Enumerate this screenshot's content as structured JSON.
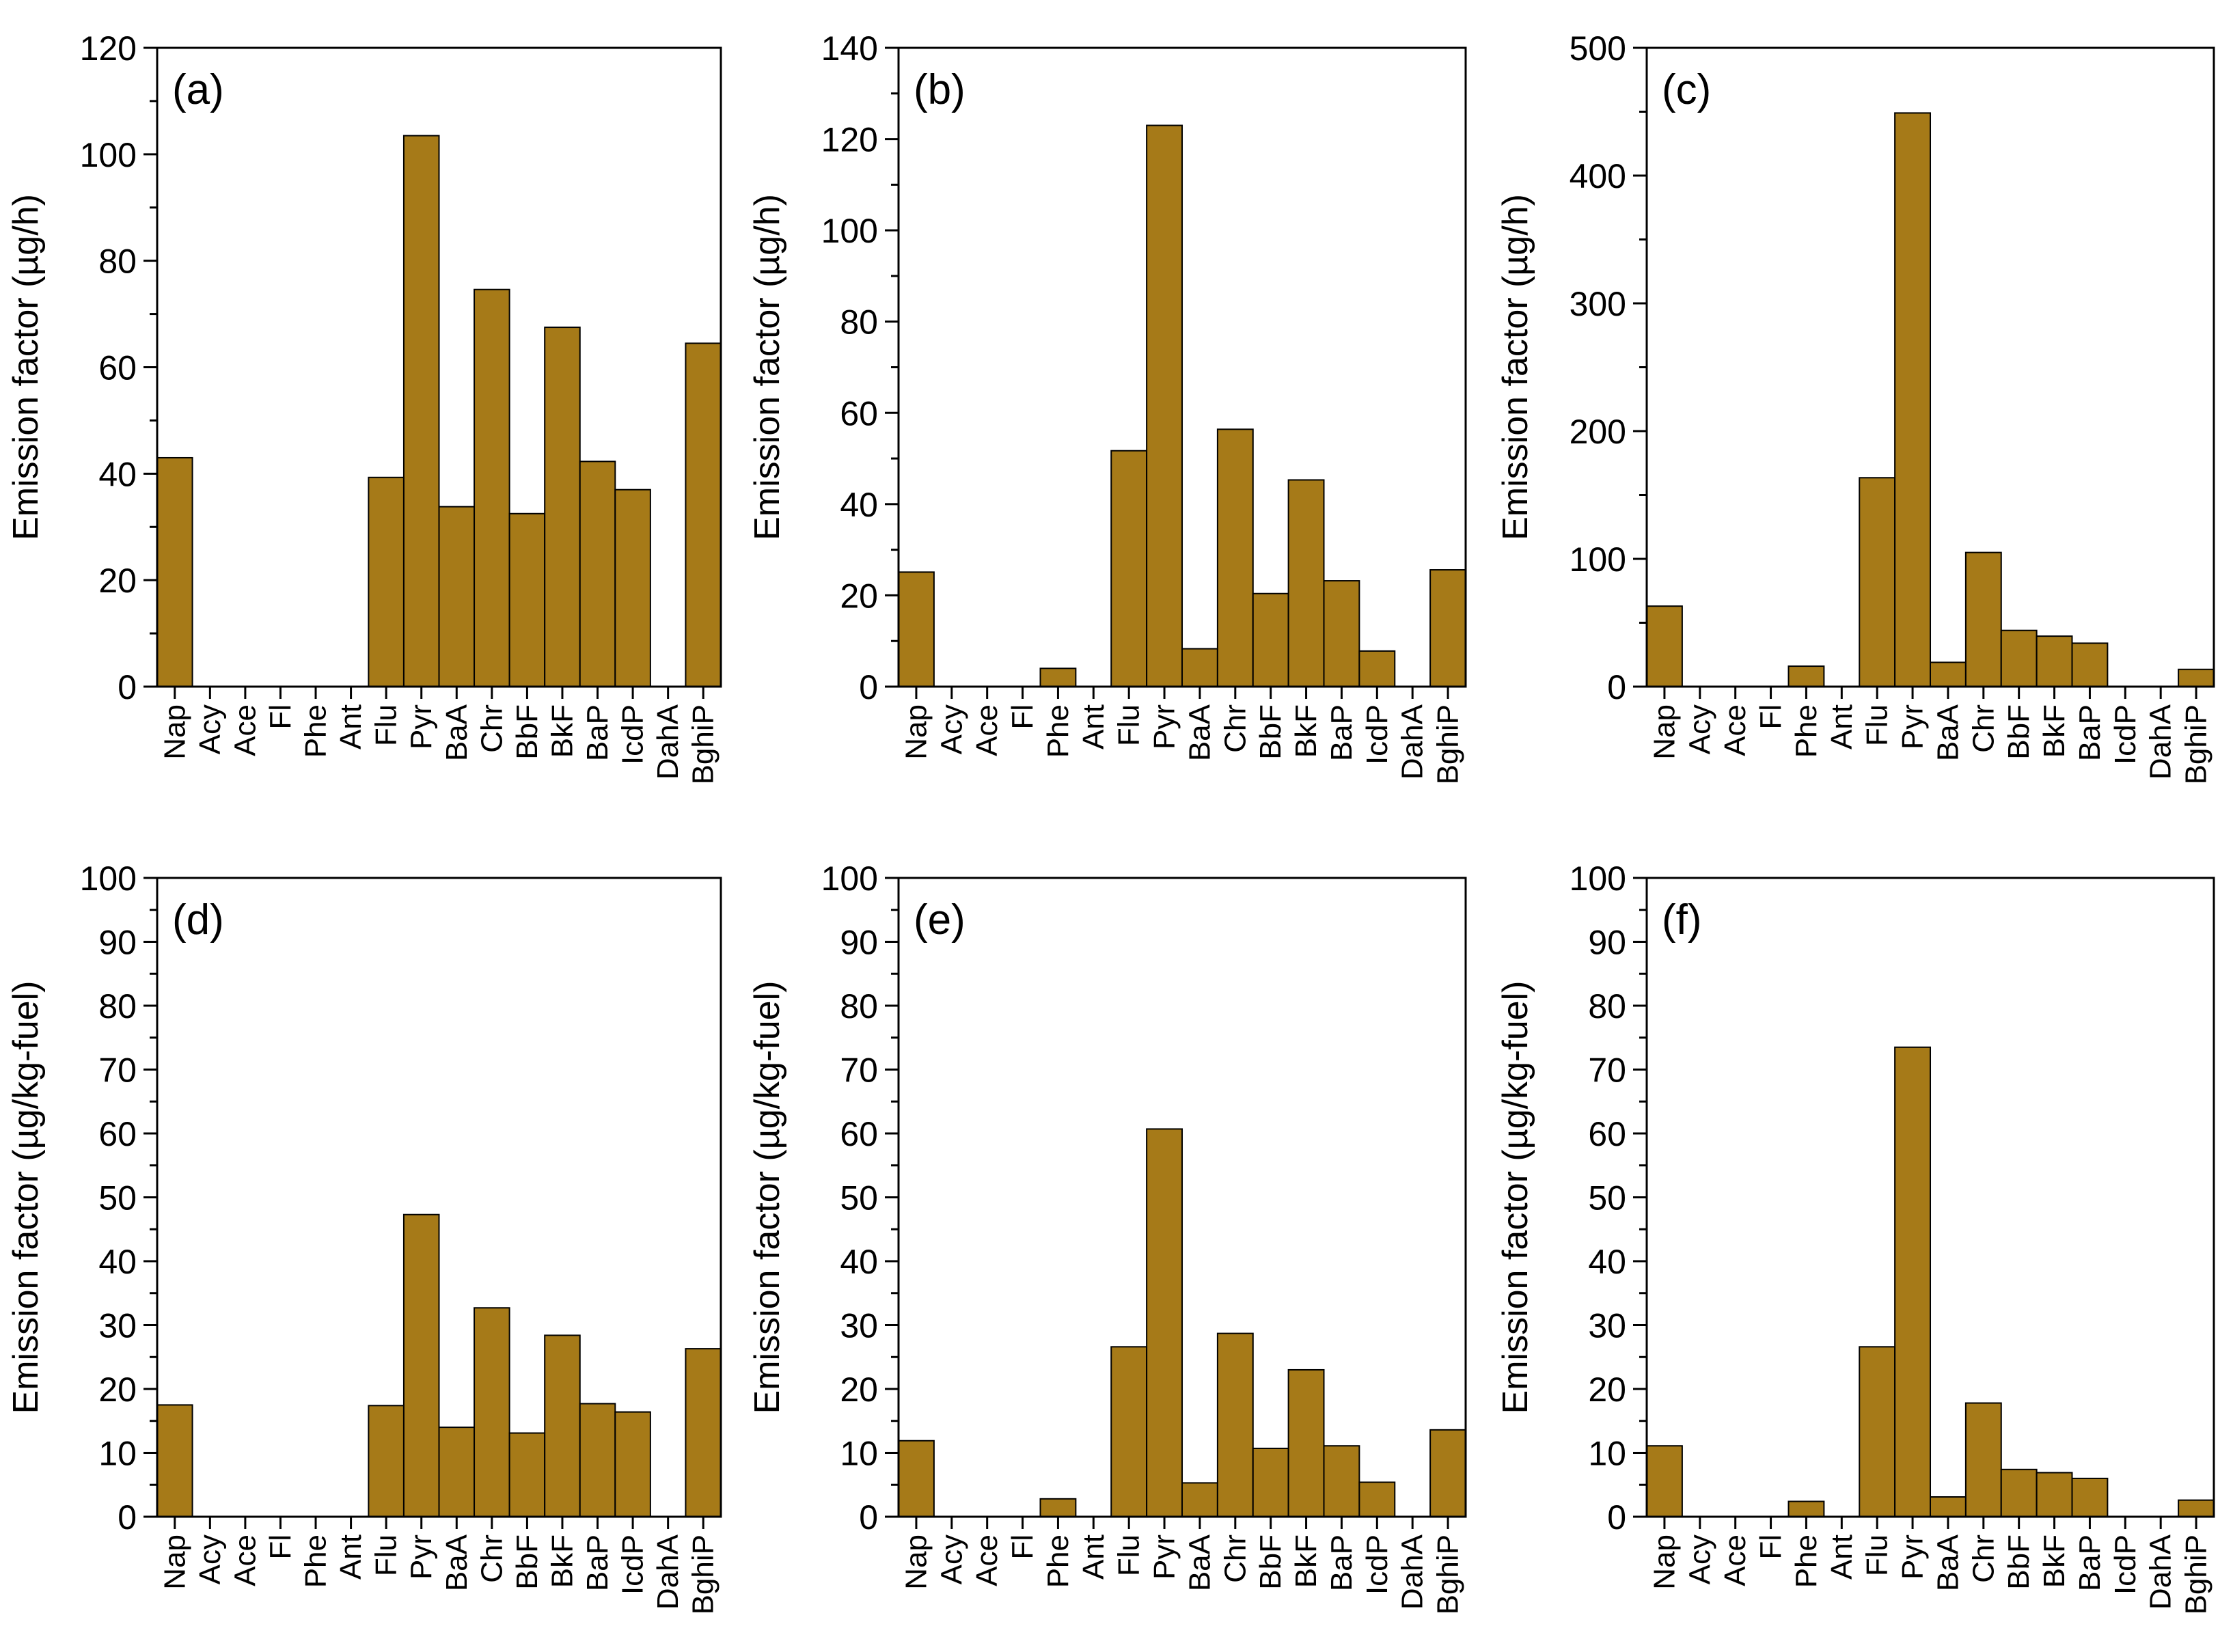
{
  "figure": {
    "bar_fill": "#A67A18",
    "bar_stroke": "#000000",
    "axis_color": "#000000",
    "background": "#FFFFFF"
  },
  "chart_data": [
    {
      "type": "bar",
      "panel_label": "(a)",
      "title": "",
      "xlabel": "",
      "ylabel": "Emission factor (µg/h)",
      "ylim": [
        0,
        120
      ],
      "yticks": [
        0,
        20,
        40,
        60,
        80,
        100,
        120
      ],
      "categories": [
        "Nap",
        "Acy",
        "Ace",
        "Fl",
        "Phe",
        "Ant",
        "Flu",
        "Pyr",
        "BaA",
        "Chr",
        "BbF",
        "BkF",
        "BaP",
        "IcdP",
        "DahA",
        "BghiP"
      ],
      "values": [
        43,
        0,
        0,
        0,
        0,
        0,
        39.3,
        103.5,
        33.8,
        74.6,
        32.5,
        67.5,
        42.3,
        37,
        0,
        64.5
      ]
    },
    {
      "type": "bar",
      "panel_label": "(b)",
      "title": "",
      "xlabel": "",
      "ylabel": "Emission factor (µg/h)",
      "ylim": [
        0,
        140
      ],
      "yticks": [
        0,
        20,
        40,
        60,
        80,
        100,
        120,
        140
      ],
      "categories": [
        "Nap",
        "Acy",
        "Ace",
        "Fl",
        "Phe",
        "Ant",
        "Flu",
        "Pyr",
        "BaA",
        "Chr",
        "BbF",
        "BkF",
        "BaP",
        "IcdP",
        "DahA",
        "BghiP"
      ],
      "values": [
        25.1,
        0,
        0,
        0,
        4,
        0,
        51.7,
        123,
        8.3,
        56.4,
        20.4,
        45.3,
        23.2,
        7.8,
        0,
        25.6
      ]
    },
    {
      "type": "bar",
      "panel_label": "(c)",
      "title": "",
      "xlabel": "",
      "ylabel": "Emission factor (µg/h)",
      "ylim": [
        0,
        500
      ],
      "yticks": [
        0,
        100,
        200,
        300,
        400,
        500
      ],
      "categories": [
        "Nap",
        "Acy",
        "Ace",
        "Fl",
        "Phe",
        "Ant",
        "Flu",
        "Pyr",
        "BaA",
        "Chr",
        "BbF",
        "BkF",
        "BaP",
        "IcdP",
        "DahA",
        "BghiP"
      ],
      "values": [
        63,
        0,
        0,
        0,
        16,
        0,
        163.5,
        449,
        19,
        105,
        44,
        39.5,
        34,
        0,
        0,
        13.5
      ]
    },
    {
      "type": "bar",
      "panel_label": "(d)",
      "title": "",
      "xlabel": "",
      "ylabel": "Emission factor (µg/kg-fuel)",
      "ylim": [
        0,
        100
      ],
      "yticks": [
        0,
        10,
        20,
        30,
        40,
        50,
        60,
        70,
        80,
        90,
        100
      ],
      "categories": [
        "Nap",
        "Acy",
        "Ace",
        "Fl",
        "Phe",
        "Ant",
        "Flu",
        "Pyr",
        "BaA",
        "Chr",
        "BbF",
        "BkF",
        "BaP",
        "IcdP",
        "DahA",
        "BghiP"
      ],
      "values": [
        17.5,
        0,
        0,
        0,
        0,
        0,
        17.4,
        47.3,
        14,
        32.7,
        13.1,
        28.4,
        17.7,
        16.4,
        0,
        26.3
      ]
    },
    {
      "type": "bar",
      "panel_label": "(e)",
      "title": "",
      "xlabel": "",
      "ylabel": "Emission factor (µg/kg-fuel)",
      "ylim": [
        0,
        100
      ],
      "yticks": [
        0,
        10,
        20,
        30,
        40,
        50,
        60,
        70,
        80,
        90,
        100
      ],
      "categories": [
        "Nap",
        "Acy",
        "Ace",
        "Fl",
        "Phe",
        "Ant",
        "Flu",
        "Pyr",
        "BaA",
        "Chr",
        "BbF",
        "BkF",
        "BaP",
        "IcdP",
        "DahA",
        "BghiP"
      ],
      "values": [
        11.9,
        0,
        0,
        0,
        2.8,
        0,
        26.6,
        60.7,
        5.3,
        28.7,
        10.7,
        23,
        11.1,
        5.4,
        0,
        13.6
      ]
    },
    {
      "type": "bar",
      "panel_label": "(f)",
      "title": "",
      "xlabel": "",
      "ylabel": "Emission factor (µg/kg-fuel)",
      "ylim": [
        0,
        100
      ],
      "yticks": [
        0,
        10,
        20,
        30,
        40,
        50,
        60,
        70,
        80,
        90,
        100
      ],
      "categories": [
        "Nap",
        "Acy",
        "Ace",
        "Fl",
        "Phe",
        "Ant",
        "Flu",
        "Pyr",
        "BaA",
        "Chr",
        "BbF",
        "BkF",
        "BaP",
        "IcdP",
        "DahA",
        "BghiP"
      ],
      "values": [
        11.1,
        0,
        0,
        0,
        2.4,
        0,
        26.6,
        73.5,
        3.1,
        17.8,
        7.4,
        6.9,
        6,
        0,
        0,
        2.6
      ]
    }
  ]
}
